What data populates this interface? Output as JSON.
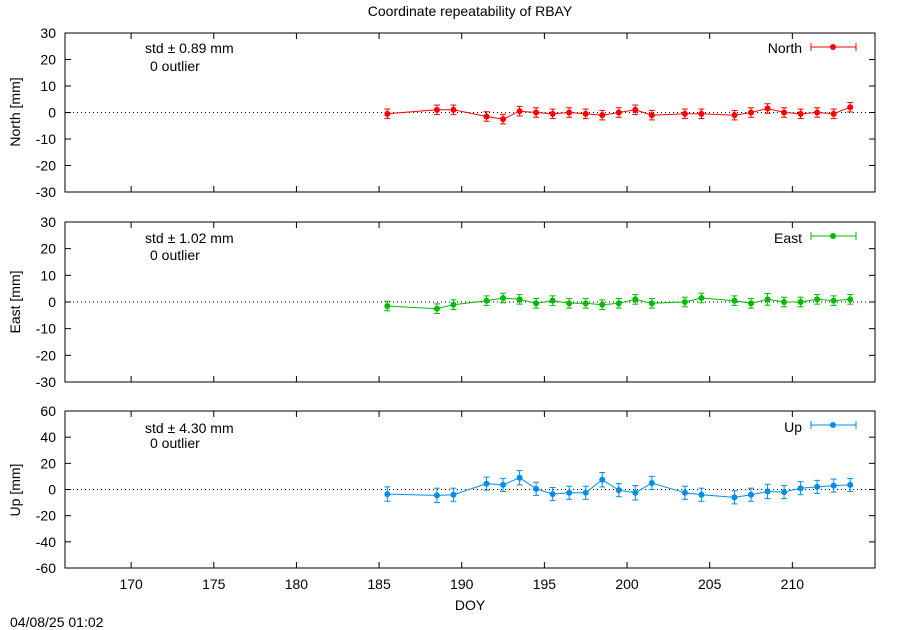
{
  "chart_data": {
    "type": "scatter",
    "title": "Coordinate repeatability of RBAY",
    "xlabel": "DOY",
    "xlim": [
      166,
      215
    ],
    "xticks": [
      170,
      175,
      180,
      185,
      190,
      195,
      200,
      205,
      210
    ],
    "footer": "04/08/25 01:02",
    "panels": [
      {
        "name": "North",
        "ylabel": "North [mm]",
        "ylim": [
          -30,
          30
        ],
        "yticks": [
          -30,
          -20,
          -10,
          0,
          10,
          20,
          30
        ],
        "color": "#ff0000",
        "std_text": "std ± 0.89 mm",
        "outlier_text": "0 outlier",
        "legend": "North",
        "x": [
          185.5,
          188.5,
          189.5,
          191.5,
          192.5,
          193.5,
          194.5,
          195.5,
          196.5,
          197.5,
          198.5,
          199.5,
          200.5,
          201.5,
          203.5,
          204.5,
          206.5,
          207.5,
          208.5,
          209.5,
          210.5,
          211.5,
          212.5,
          213.5
        ],
        "y": [
          -0.5,
          1.0,
          1.0,
          -1.5,
          -2.5,
          0.5,
          0.0,
          -0.5,
          0.0,
          -0.5,
          -1.0,
          0.0,
          1.0,
          -1.0,
          -0.5,
          -0.5,
          -1.0,
          0.0,
          1.5,
          0.0,
          -0.5,
          0.0,
          -0.5,
          2.0
        ],
        "err": [
          1.8,
          1.8,
          1.8,
          1.8,
          1.8,
          1.8,
          1.8,
          1.8,
          1.8,
          1.8,
          1.8,
          1.8,
          1.8,
          1.8,
          1.8,
          1.8,
          1.8,
          1.8,
          1.8,
          1.8,
          1.8,
          1.8,
          1.8,
          1.8
        ]
      },
      {
        "name": "East",
        "ylabel": "East [mm]",
        "ylim": [
          -30,
          30
        ],
        "yticks": [
          -30,
          -20,
          -10,
          0,
          10,
          20,
          30
        ],
        "color": "#00bb00",
        "std_text": "std ± 1.02 mm",
        "outlier_text": "0 outlier",
        "legend": "East",
        "x": [
          185.5,
          188.5,
          189.5,
          191.5,
          192.5,
          193.5,
          194.5,
          195.5,
          196.5,
          197.5,
          198.5,
          199.5,
          200.5,
          201.5,
          203.5,
          204.5,
          206.5,
          207.5,
          208.5,
          209.5,
          210.5,
          211.5,
          212.5,
          213.5
        ],
        "y": [
          -1.5,
          -2.5,
          -1.0,
          0.5,
          1.5,
          1.0,
          -0.5,
          0.5,
          -0.5,
          -0.5,
          -1.0,
          -0.5,
          1.0,
          -0.5,
          0.0,
          1.5,
          0.5,
          -0.5,
          1.0,
          0.0,
          0.0,
          1.0,
          0.5,
          1.0
        ],
        "err": [
          1.8,
          1.8,
          1.8,
          1.8,
          1.8,
          1.8,
          1.8,
          1.8,
          1.8,
          1.8,
          1.8,
          1.8,
          1.8,
          1.8,
          1.8,
          1.8,
          1.8,
          1.8,
          2.2,
          1.8,
          1.8,
          1.8,
          1.8,
          1.8
        ]
      },
      {
        "name": "Up",
        "ylabel": "Up [mm]",
        "ylim": [
          -60,
          60
        ],
        "yticks": [
          -60,
          -40,
          -20,
          0,
          20,
          40,
          60
        ],
        "color": "#008ee8",
        "std_text": "std ± 4.30 mm",
        "outlier_text": "0 outlier",
        "legend": "Up",
        "x": [
          185.5,
          188.5,
          189.5,
          191.5,
          192.5,
          193.5,
          194.5,
          195.5,
          196.5,
          197.5,
          198.5,
          199.5,
          200.5,
          201.5,
          203.5,
          204.5,
          206.5,
          207.5,
          208.5,
          209.5,
          210.5,
          211.5,
          212.5,
          213.5
        ],
        "y": [
          -3.5,
          -4.5,
          -4.0,
          4.5,
          3.5,
          9.0,
          0.5,
          -3.5,
          -2.5,
          -2.5,
          7.5,
          -0.5,
          -2.5,
          5.0,
          -2.5,
          -4.0,
          -6.0,
          -4.0,
          -1.5,
          -2.0,
          1.0,
          2.0,
          3.0,
          3.5
        ],
        "err": [
          5.5,
          5.5,
          5.0,
          5.0,
          5.0,
          5.5,
          5.0,
          5.0,
          5.0,
          5.0,
          5.5,
          5.0,
          5.5,
          5.0,
          5.0,
          5.0,
          5.0,
          5.0,
          5.5,
          5.0,
          5.0,
          5.0,
          5.0,
          5.0
        ]
      }
    ]
  }
}
